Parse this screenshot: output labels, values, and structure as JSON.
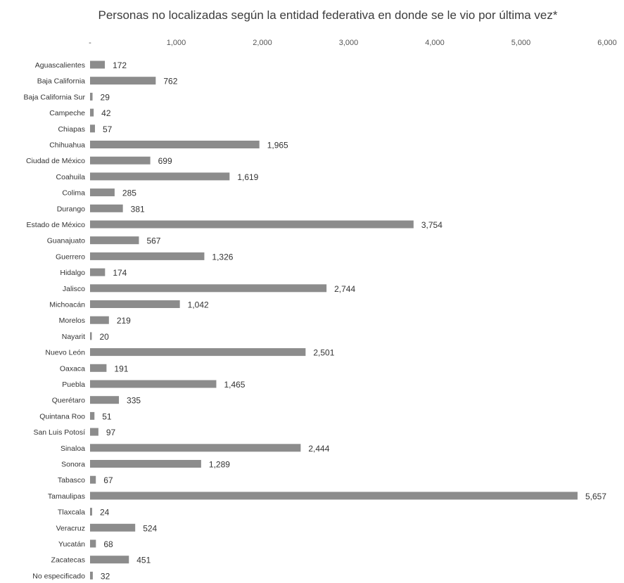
{
  "chart_data": {
    "type": "bar",
    "orientation": "horizontal",
    "title": "Personas no localizadas según la entidad federativa en donde se le vio por última vez*",
    "xlim": [
      0,
      6000
    ],
    "x_ticks": [
      "-",
      "1,000",
      "2,000",
      "3,000",
      "4,000",
      "5,000",
      "6,000"
    ],
    "x_tick_values": [
      0,
      1000,
      2000,
      3000,
      4000,
      5000,
      6000
    ],
    "x_axis_position": "top",
    "grid": false,
    "legend": "none",
    "bar_color": "#8c8c8c",
    "categories": [
      "Aguascalientes",
      "Baja California",
      "Baja California Sur",
      "Campeche",
      "Chiapas",
      "Chihuahua",
      "Ciudad de México",
      "Coahuila",
      "Colima",
      "Durango",
      "Estado de México",
      "Guanajuato",
      "Guerrero",
      "Hidalgo",
      "Jalisco",
      "Michoacán",
      "Morelos",
      "Nayarit",
      "Nuevo León",
      "Oaxaca",
      "Puebla",
      "Querétaro",
      "Quintana Roo",
      "San Luis Potosí",
      "Sinaloa",
      "Sonora",
      "Tabasco",
      "Tamaulipas",
      "Tlaxcala",
      "Veracruz",
      "Yucatán",
      "Zacatecas",
      "No especificado"
    ],
    "values": [
      172,
      762,
      29,
      42,
      57,
      1965,
      699,
      1619,
      285,
      381,
      3754,
      567,
      1326,
      174,
      2744,
      1042,
      219,
      20,
      2501,
      191,
      1465,
      335,
      51,
      97,
      2444,
      1289,
      67,
      5657,
      24,
      524,
      68,
      451,
      32
    ],
    "value_labels": [
      "172",
      "762",
      "29",
      "42",
      "57",
      "1,965",
      "699",
      "1,619",
      "285",
      "381",
      "3,754",
      "567",
      "1,326",
      "174",
      "2,744",
      "1,042",
      "219",
      "20",
      "2,501",
      "191",
      "1,465",
      "335",
      "51",
      "97",
      "2,444",
      "1,289",
      "67",
      "5,657",
      "24",
      "524",
      "68",
      "451",
      "32"
    ]
  }
}
